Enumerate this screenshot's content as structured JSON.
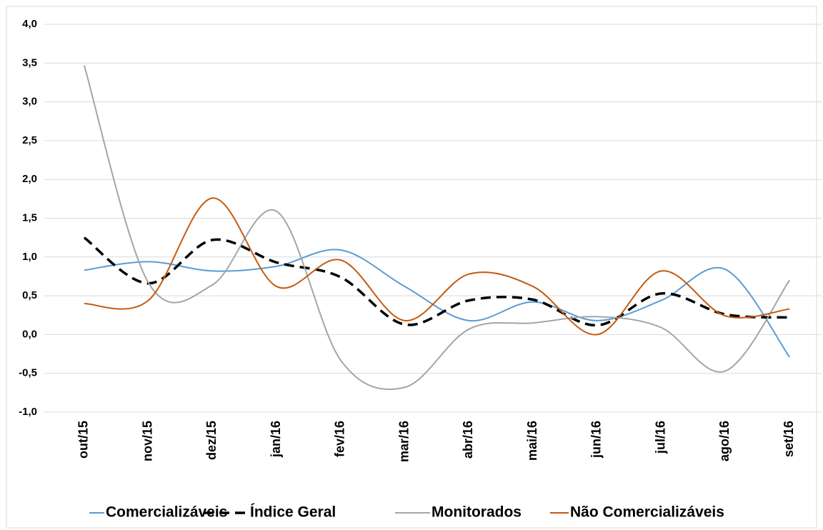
{
  "chart_data": {
    "type": "line",
    "categories": [
      "out/15",
      "nov/15",
      "dez/15",
      "jan/16",
      "fev/16",
      "mar/16",
      "abr/16",
      "mai/16",
      "jun/16",
      "jul/16",
      "ago/16",
      "set/16"
    ],
    "series": [
      {
        "name": "Comercializáveis",
        "color": "#5b9bd5",
        "values": [
          0.83,
          0.94,
          0.82,
          0.88,
          1.09,
          0.62,
          0.18,
          0.42,
          0.18,
          0.44,
          0.84,
          -0.29
        ]
      },
      {
        "name": "Índice Geral",
        "color": "#000000",
        "line_style": "dashed",
        "values": [
          1.25,
          0.66,
          1.22,
          0.93,
          0.74,
          0.13,
          0.44,
          0.45,
          0.12,
          0.53,
          0.26,
          0.22
        ]
      },
      {
        "name": "Monitorados",
        "color": "#a5a5a5",
        "values": [
          3.47,
          0.67,
          0.64,
          1.59,
          -0.33,
          -0.68,
          0.07,
          0.15,
          0.23,
          0.09,
          -0.47,
          0.7
        ]
      },
      {
        "name": "Não Comercializáveis",
        "color": "#c55a11",
        "values": [
          0.4,
          0.44,
          1.76,
          0.62,
          0.96,
          0.18,
          0.78,
          0.62,
          0.0,
          0.82,
          0.24,
          0.33
        ]
      }
    ],
    "ylim": [
      -1,
      4
    ],
    "yticks": [
      {
        "value": -1,
        "label": "-1,0"
      },
      {
        "value": -0.5,
        "label": "-0,5"
      },
      {
        "value": 0,
        "label": "0,0"
      },
      {
        "value": 0.5,
        "label": "0,5"
      },
      {
        "value": 1,
        "label": "1,0"
      },
      {
        "value": 1.5,
        "label": "1,5"
      },
      {
        "value": 2,
        "label": "2,0"
      },
      {
        "value": 2.5,
        "label": "2,5"
      },
      {
        "value": 3,
        "label": "3,0"
      },
      {
        "value": 3.5,
        "label": "3,5"
      },
      {
        "value": 4,
        "label": "4,0"
      }
    ],
    "grid": true,
    "smooth": true,
    "legend": "bottom"
  }
}
